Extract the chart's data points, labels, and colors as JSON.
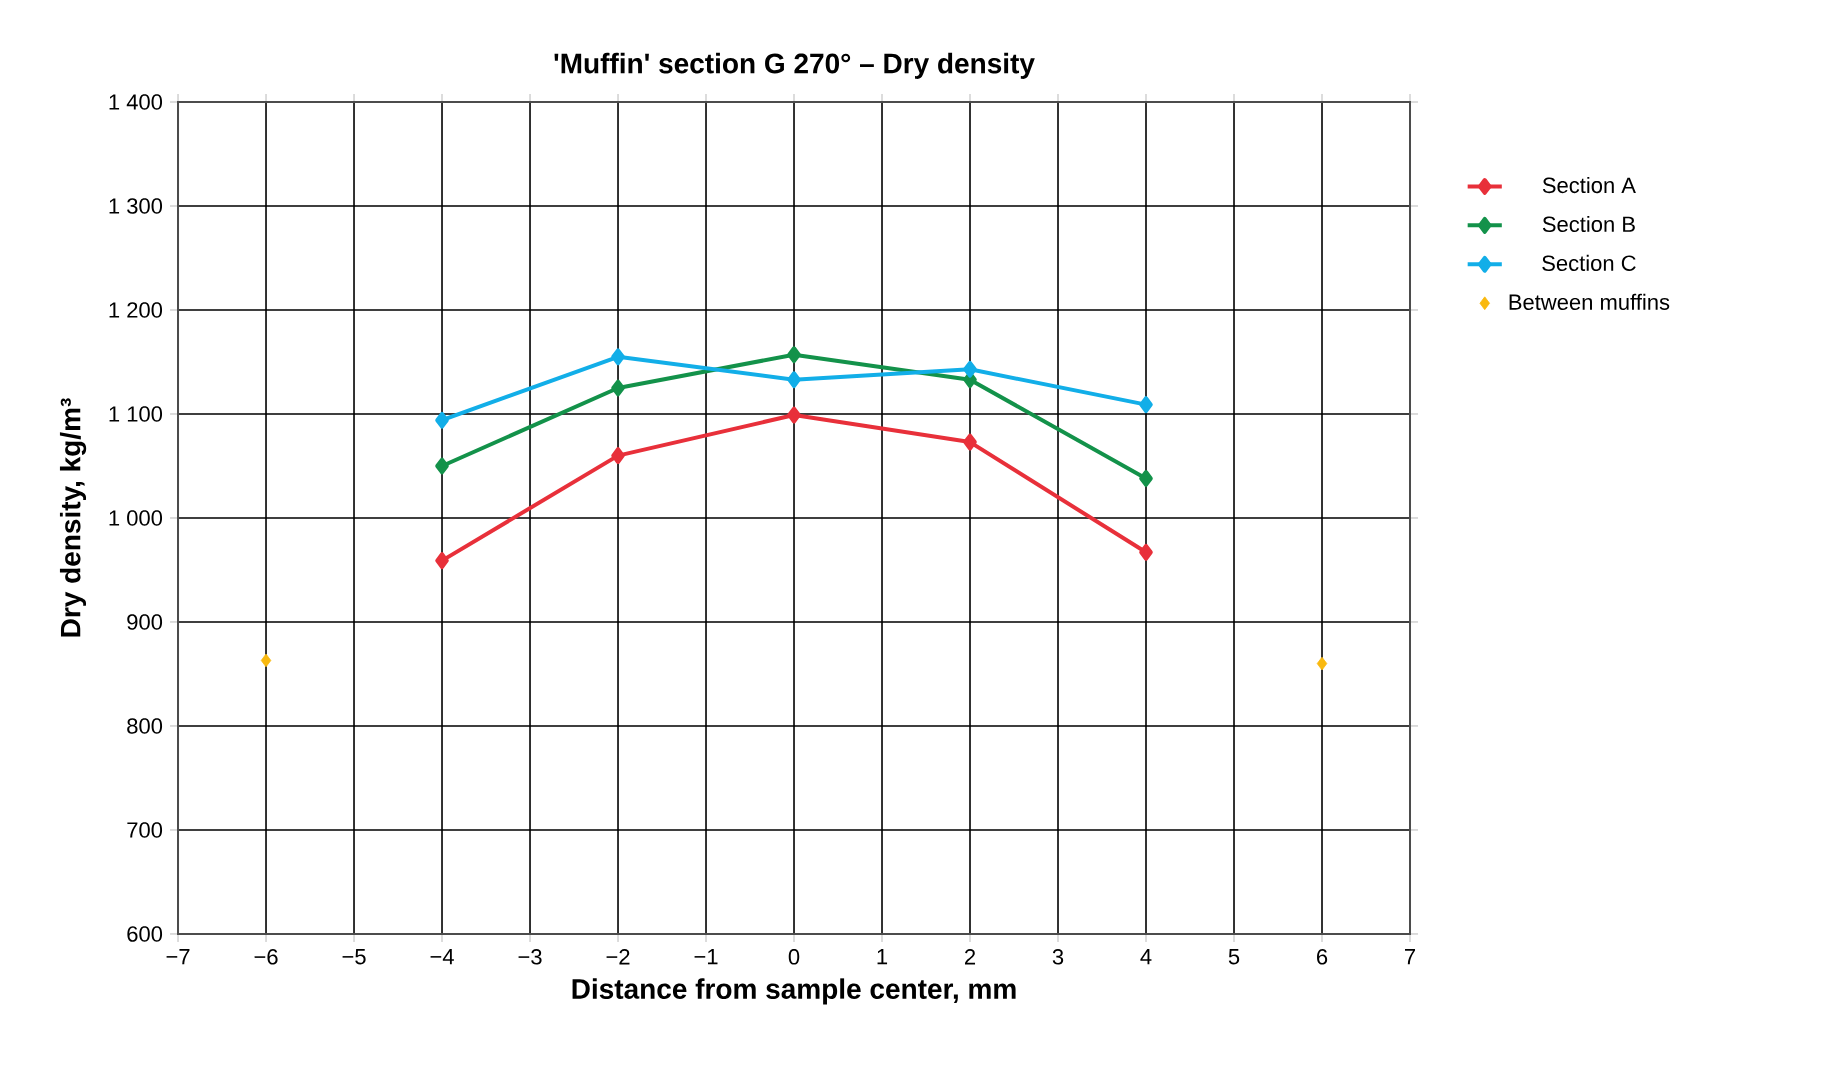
{
  "chart_data": {
    "type": "line",
    "title": "'Muffin' section G 270° – Dry density",
    "xlabel": "Distance from sample center, mm",
    "ylabel": "Dry density, kg/m³",
    "x": [
      -4,
      -2,
      0,
      2,
      4
    ],
    "series": [
      {
        "name": "Section A",
        "color": "#e8303a",
        "values": [
          959,
          1060,
          1099,
          1073,
          967
        ]
      },
      {
        "name": "Section B",
        "color": "#13924a",
        "values": [
          1050,
          1125,
          1157,
          1133,
          1038
        ]
      },
      {
        "name": "Section C",
        "color": "#12aee8",
        "values": [
          1094,
          1155,
          1133,
          1143,
          1109
        ]
      },
      {
        "name": "Between muffins",
        "type": "scatter",
        "color": "#f9b90f",
        "x": [
          -6,
          6
        ],
        "values": [
          863,
          860
        ]
      }
    ],
    "xlim": [
      -7,
      7
    ],
    "xticks": [
      {
        "value": -7,
        "label": "−7"
      },
      {
        "value": -6,
        "label": "−6"
      },
      {
        "value": -5,
        "label": "−5"
      },
      {
        "value": -4,
        "label": "−4"
      },
      {
        "value": -3,
        "label": "−3"
      },
      {
        "value": -2,
        "label": "−2"
      },
      {
        "value": -1,
        "label": "−1"
      },
      0,
      1,
      2,
      3,
      4,
      5,
      6,
      7
    ],
    "ylim": [
      600,
      1400
    ],
    "yticks": [
      600,
      700,
      800,
      900,
      {
        "value": 1000,
        "label": "1 000"
      },
      {
        "value": 1100,
        "label": "1 100"
      },
      {
        "value": 1200,
        "label": "1 200"
      },
      {
        "value": 1300,
        "label": "1 300"
      },
      {
        "value": 1400,
        "label": "1 400"
      }
    ],
    "grid": true,
    "legend": "right",
    "marker": "diamond"
  }
}
